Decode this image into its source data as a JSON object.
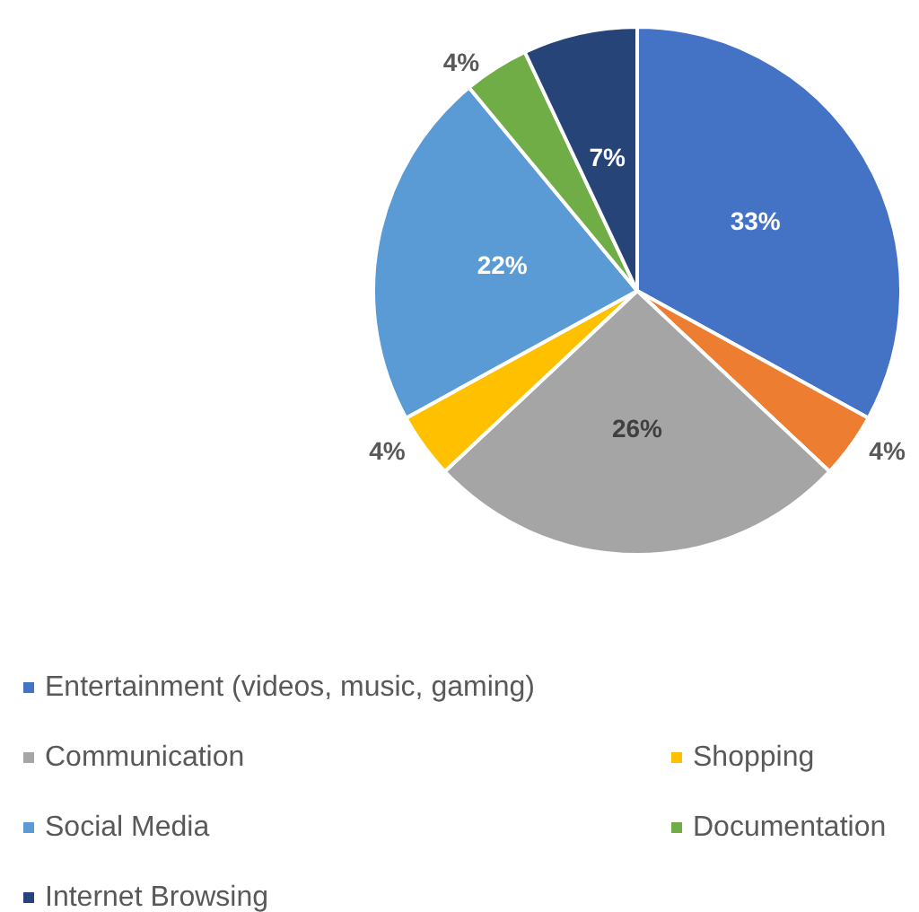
{
  "chart_data": {
    "type": "pie",
    "categories": [
      "Entertainment (videos, music, gaming)",
      null,
      "Communication",
      "Shopping",
      "Social Media",
      "Documentation",
      "Internet Browsing"
    ],
    "values": [
      33,
      4,
      26,
      4,
      22,
      4,
      7
    ],
    "colors": [
      "#4472c4",
      "#ed7d31",
      "#a5a5a5",
      "#ffc000",
      "#5b9bd5",
      "#70ad47",
      "#264478"
    ],
    "value_labels": [
      "33%",
      "4%",
      "26%",
      "4%",
      "22%",
      "4%",
      "7%"
    ],
    "legend": "bottom"
  }
}
